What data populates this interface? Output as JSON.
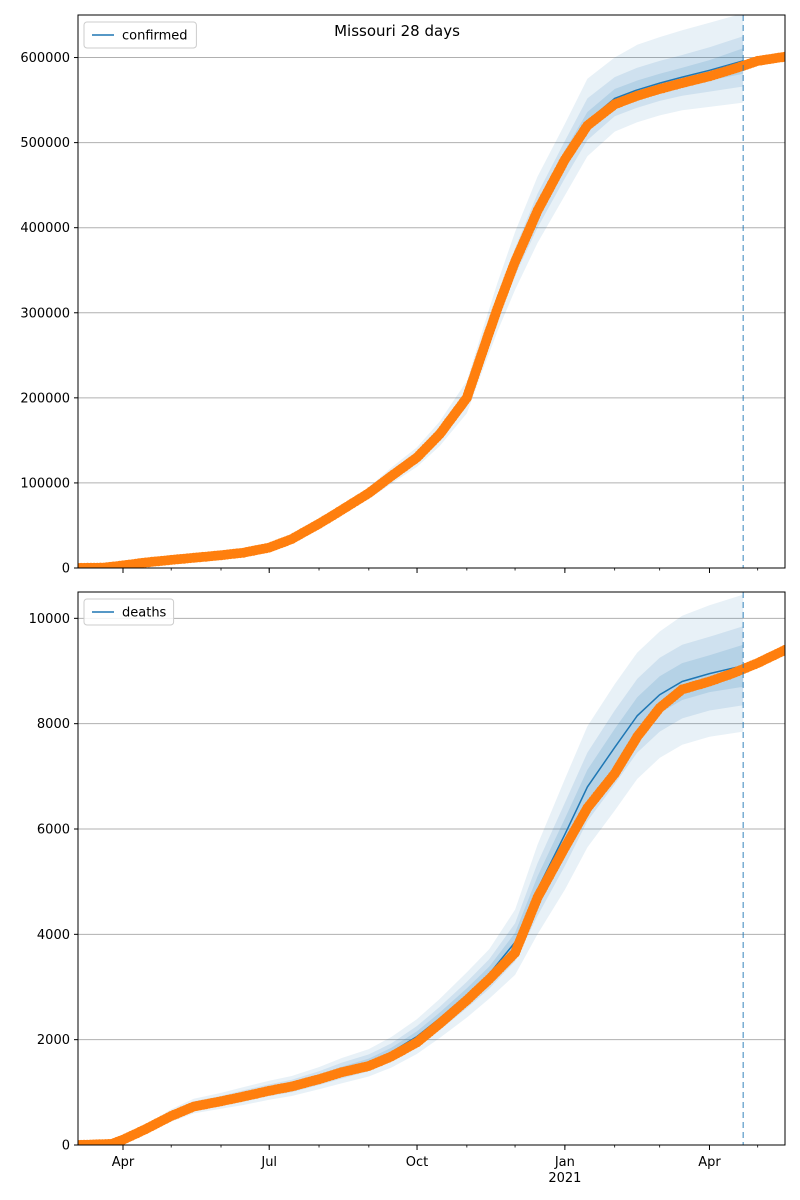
{
  "figure": {
    "title": "Missouri 28 days"
  },
  "colors": {
    "model_line": "#1f77b4",
    "observed_points": "#ff7f0e",
    "band": "#1f77b4",
    "grid": "#b0b0b0",
    "forecast_marker": "#1f77b4"
  },
  "chart_data": [
    {
      "type": "line",
      "title": "Missouri 28 days",
      "legend": {
        "entries": [
          "confirmed"
        ],
        "placement": "top-left"
      },
      "grid": "horizontal",
      "x_ticks": [
        {
          "date": "2020-04-01",
          "label": "Apr"
        },
        {
          "date": "2020-07-01",
          "label": "Jul"
        },
        {
          "date": "2020-10-01",
          "label": "Oct"
        },
        {
          "date": "2021-01-01",
          "label": "Jan"
        },
        {
          "date": "2021-04-01",
          "label": "Apr"
        }
      ],
      "year_label": "",
      "xlim": [
        "2020-03-04",
        "2021-05-18"
      ],
      "ylim": [
        0,
        650000
      ],
      "y_ticks": [
        0,
        100000,
        200000,
        300000,
        400000,
        500000,
        600000
      ],
      "y_tick_labels": [
        "0",
        "100000",
        "200000",
        "300000",
        "400000",
        "500000",
        "600000"
      ],
      "forecast_date": "2021-04-22",
      "observed": {
        "x": [
          "2020-03-04",
          "2020-03-20",
          "2020-04-01",
          "2020-04-15",
          "2020-05-01",
          "2020-05-15",
          "2020-06-01",
          "2020-06-15",
          "2020-07-01",
          "2020-07-15",
          "2020-08-01",
          "2020-08-15",
          "2020-09-01",
          "2020-09-15",
          "2020-10-01",
          "2020-10-15",
          "2020-11-01",
          "2020-11-10",
          "2020-11-20",
          "2020-12-01",
          "2020-12-15",
          "2021-01-01",
          "2021-01-15",
          "2021-02-01",
          "2021-02-15",
          "2021-03-01",
          "2021-03-15",
          "2021-04-01",
          "2021-04-15",
          "2021-05-01",
          "2021-05-18"
        ],
        "y": [
          0,
          500,
          3000,
          6500,
          9500,
          12000,
          15000,
          18000,
          24000,
          34000,
          52000,
          68000,
          88000,
          108000,
          130000,
          157000,
          200000,
          250000,
          305000,
          360000,
          420000,
          480000,
          520000,
          545000,
          555000,
          563000,
          570000,
          578000,
          586000,
          596000,
          601000
        ]
      },
      "model": {
        "x": [
          "2020-03-04",
          "2020-03-20",
          "2020-04-01",
          "2020-04-15",
          "2020-05-01",
          "2020-05-15",
          "2020-06-01",
          "2020-06-15",
          "2020-07-01",
          "2020-07-15",
          "2020-08-01",
          "2020-08-15",
          "2020-09-01",
          "2020-09-15",
          "2020-10-01",
          "2020-10-15",
          "2020-11-01",
          "2020-11-10",
          "2020-11-20",
          "2020-12-01",
          "2020-12-15",
          "2021-01-01",
          "2021-01-15",
          "2021-02-01",
          "2021-02-15",
          "2021-03-01",
          "2021-03-15",
          "2021-04-01",
          "2021-04-22"
        ],
        "y": [
          0,
          500,
          3000,
          6500,
          9500,
          12000,
          15000,
          18000,
          24000,
          34000,
          52000,
          68000,
          88000,
          109000,
          131000,
          158000,
          200000,
          250000,
          305000,
          360000,
          420000,
          480000,
          525000,
          552000,
          562000,
          570000,
          577000,
          585000,
          596000
        ]
      },
      "bands": [
        {
          "level": "outer",
          "lower": [
            0,
            300,
            2200,
            5500,
            8000,
            10500,
            13500,
            16000,
            21500,
            31000,
            48000,
            63000,
            81000,
            99000,
            119000,
            143000,
            182000,
            228000,
            278000,
            327000,
            382000,
            438000,
            484000,
            513000,
            524000,
            532000,
            538000,
            542000,
            547000
          ],
          "upper": [
            0,
            700,
            3800,
            7500,
            11000,
            13500,
            16500,
            20000,
            26500,
            37000,
            56000,
            73000,
            95000,
            118000,
            142000,
            172000,
            220000,
            275000,
            335000,
            395000,
            460000,
            522000,
            575000,
            600000,
            615000,
            624000,
            632000,
            641000,
            652000
          ]
        },
        {
          "level": "middle",
          "lower": [
            0,
            350,
            2500,
            5800,
            8500,
            11000,
            14000,
            16800,
            22500,
            32500,
            50000,
            65500,
            84500,
            104000,
            125000,
            150000,
            190000,
            238000,
            291000,
            344000,
            400000,
            458000,
            503000,
            531000,
            541000,
            549000,
            555000,
            560000,
            566000
          ],
          "upper": [
            0,
            650,
            3500,
            7200,
            10500,
            13000,
            16000,
            19200,
            25500,
            35500,
            54000,
            70500,
            91500,
            114000,
            137000,
            166000,
            210000,
            262000,
            319000,
            376000,
            440000,
            502000,
            552000,
            577000,
            588000,
            596000,
            603000,
            612000,
            625000
          ]
        },
        {
          "level": "inner",
          "lower": [
            0,
            420,
            2800,
            6100,
            9000,
            11500,
            14500,
            17400,
            23300,
            33300,
            51000,
            66800,
            86300,
            106500,
            128000,
            154000,
            195000,
            244000,
            298000,
            352000,
            410000,
            469000,
            514000,
            541000,
            551000,
            559000,
            566000,
            573000,
            581000
          ],
          "upper": [
            0,
            580,
            3200,
            6900,
            10000,
            12500,
            15500,
            18600,
            24700,
            34700,
            53000,
            69200,
            89700,
            111500,
            134000,
            162000,
            205000,
            256000,
            312000,
            368000,
            430000,
            491000,
            536000,
            563000,
            573000,
            581000,
            588000,
            597000,
            611000
          ]
        }
      ]
    },
    {
      "type": "line",
      "title": "",
      "legend": {
        "entries": [
          "deaths"
        ],
        "placement": "top-left"
      },
      "grid": "horizontal",
      "x_ticks": [
        {
          "date": "2020-04-01",
          "label": "Apr"
        },
        {
          "date": "2020-07-01",
          "label": "Jul"
        },
        {
          "date": "2020-10-01",
          "label": "Oct"
        },
        {
          "date": "2021-01-01",
          "label": "Jan"
        },
        {
          "date": "2021-04-01",
          "label": "Apr"
        }
      ],
      "year_label": "2021",
      "xlim": [
        "2020-03-04",
        "2021-05-18"
      ],
      "ylim": [
        0,
        10500
      ],
      "y_ticks": [
        0,
        2000,
        4000,
        6000,
        8000,
        10000
      ],
      "y_tick_labels": [
        "0",
        "2000",
        "4000",
        "6000",
        "8000",
        "10000"
      ],
      "forecast_date": "2021-04-22",
      "observed": {
        "x": [
          "2020-03-04",
          "2020-03-25",
          "2020-04-01",
          "2020-04-15",
          "2020-05-01",
          "2020-05-15",
          "2020-06-01",
          "2020-06-15",
          "2020-07-01",
          "2020-07-15",
          "2020-08-01",
          "2020-08-15",
          "2020-09-01",
          "2020-09-15",
          "2020-10-01",
          "2020-10-15",
          "2020-11-01",
          "2020-11-15",
          "2020-12-01",
          "2020-12-15",
          "2021-01-01",
          "2021-01-15",
          "2021-02-01",
          "2021-02-15",
          "2021-03-01",
          "2021-03-15",
          "2021-04-01",
          "2021-04-15",
          "2021-05-01",
          "2021-05-18"
        ],
        "y": [
          0,
          20,
          100,
          300,
          550,
          730,
          830,
          920,
          1030,
          1110,
          1250,
          1380,
          1500,
          1680,
          1950,
          2300,
          2750,
          3150,
          3650,
          4700,
          5650,
          6400,
          7050,
          7750,
          8300,
          8650,
          8800,
          8950,
          9150,
          9400
        ]
      },
      "model": {
        "x": [
          "2020-03-04",
          "2020-03-25",
          "2020-04-01",
          "2020-04-15",
          "2020-05-01",
          "2020-05-15",
          "2020-06-01",
          "2020-06-15",
          "2020-07-01",
          "2020-07-15",
          "2020-08-01",
          "2020-08-15",
          "2020-09-01",
          "2020-09-15",
          "2020-10-01",
          "2020-10-15",
          "2020-11-01",
          "2020-11-15",
          "2020-12-01",
          "2020-12-15",
          "2021-01-01",
          "2021-01-15",
          "2021-02-01",
          "2021-02-15",
          "2021-03-01",
          "2021-03-15",
          "2021-04-01",
          "2021-04-22"
        ],
        "y": [
          0,
          20,
          100,
          300,
          560,
          740,
          840,
          930,
          1040,
          1120,
          1270,
          1410,
          1560,
          1760,
          2060,
          2400,
          2850,
          3250,
          3850,
          4850,
          5900,
          6800,
          7550,
          8150,
          8550,
          8800,
          8950,
          9100
        ]
      },
      "bands": [
        {
          "level": "outer",
          "lower": [
            0,
            10,
            60,
            220,
            440,
            600,
            690,
            760,
            860,
            930,
            1060,
            1170,
            1300,
            1470,
            1730,
            2030,
            2420,
            2780,
            3230,
            4000,
            4850,
            5650,
            6350,
            6950,
            7350,
            7600,
            7750,
            7850
          ],
          "upper": [
            0,
            30,
            140,
            380,
            680,
            880,
            990,
            1100,
            1220,
            1310,
            1480,
            1650,
            1820,
            2050,
            2390,
            2770,
            3280,
            3720,
            4470,
            5700,
            6950,
            7950,
            8750,
            9350,
            9750,
            10050,
            10250,
            10450
          ]
        },
        {
          "level": "middle",
          "lower": [
            0,
            14,
            75,
            250,
            480,
            650,
            750,
            820,
            930,
            1000,
            1140,
            1260,
            1400,
            1590,
            1860,
            2180,
            2600,
            2970,
            3490,
            4350,
            5300,
            6150,
            6850,
            7450,
            7850,
            8100,
            8250,
            8350
          ],
          "upper": [
            0,
            26,
            125,
            350,
            640,
            830,
            930,
            1040,
            1150,
            1240,
            1400,
            1560,
            1720,
            1930,
            2260,
            2620,
            3100,
            3530,
            4210,
            5350,
            6500,
            7450,
            8250,
            8850,
            9250,
            9500,
            9650,
            9850
          ]
        },
        {
          "level": "inner",
          "lower": [
            0,
            17,
            87,
            275,
            520,
            695,
            795,
            875,
            985,
            1060,
            1205,
            1335,
            1480,
            1675,
            1960,
            2290,
            2725,
            3110,
            3670,
            4600,
            5600,
            6475,
            7200,
            7800,
            8200,
            8450,
            8600,
            8700
          ],
          "upper": [
            0,
            23,
            113,
            325,
            600,
            785,
            885,
            985,
            1095,
            1180,
            1335,
            1485,
            1640,
            1845,
            2160,
            2510,
            2975,
            3390,
            4030,
            5100,
            6200,
            7125,
            7900,
            8500,
            8900,
            9150,
            9300,
            9500
          ]
        }
      ]
    }
  ]
}
